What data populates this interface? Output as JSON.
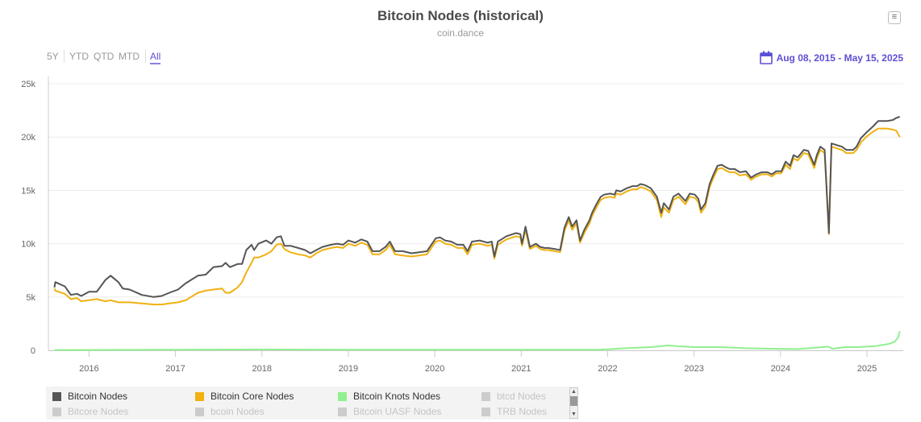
{
  "header": {
    "title": "Bitcoin Nodes (historical)",
    "subtitle": "coin.dance",
    "menu_icon": "hamburger-icon"
  },
  "range_selector": {
    "buttons": [
      "5Y",
      "YTD",
      "QTD",
      "MTD",
      "All"
    ],
    "selected": "All"
  },
  "date_range": {
    "label": "Aug 08, 2015 - May 15, 2025",
    "icon": "calendar-icon",
    "color": "#5d4fd6"
  },
  "legend": {
    "items": [
      {
        "label": "Bitcoin Nodes",
        "color": "#555555",
        "visible": true
      },
      {
        "label": "Bitcoin Core Nodes",
        "color": "#f0b111",
        "visible": true
      },
      {
        "label": "Bitcoin Knots Nodes",
        "color": "#90f090",
        "visible": true
      },
      {
        "label": "btcd Nodes",
        "color": "#cccccc",
        "visible": false
      },
      {
        "label": "Bitcore Nodes",
        "color": "#cccccc",
        "visible": false
      },
      {
        "label": "bcoin Nodes",
        "color": "#cccccc",
        "visible": false
      },
      {
        "label": "Bitcoin UASF Nodes",
        "color": "#cccccc",
        "visible": false
      },
      {
        "label": "TRB Nodes",
        "color": "#cccccc",
        "visible": false
      }
    ]
  },
  "chart_data": {
    "type": "line",
    "title": "Bitcoin Nodes (historical)",
    "subtitle": "coin.dance",
    "xlabel": "",
    "ylabel": "",
    "xlim": [
      2015.53,
      2025.42
    ],
    "ylim": [
      0,
      25000
    ],
    "yticks": [
      0,
      5000,
      10000,
      15000,
      20000,
      25000
    ],
    "ytick_labels": [
      "0",
      "5k",
      "10k",
      "15k",
      "20k",
      "25k"
    ],
    "xticks": [
      2016,
      2017,
      2018,
      2019,
      2020,
      2021,
      2022,
      2023,
      2024,
      2025
    ],
    "xtick_labels": [
      "2016",
      "2017",
      "2018",
      "2019",
      "2020",
      "2021",
      "2022",
      "2023",
      "2024",
      "2025"
    ],
    "grid": true,
    "legend_position": "bottom",
    "x": [
      2015.6,
      2015.61,
      2015.72,
      2015.79,
      2015.86,
      2015.91,
      2016.0,
      2016.09,
      2016.19,
      2016.25,
      2016.34,
      2016.39,
      2016.47,
      2016.61,
      2016.75,
      2016.84,
      2016.93,
      2017.03,
      2017.12,
      2017.26,
      2017.35,
      2017.44,
      2017.54,
      2017.58,
      2017.63,
      2017.72,
      2017.77,
      2017.82,
      2017.88,
      2017.91,
      2017.96,
      2018.05,
      2018.11,
      2018.17,
      2018.22,
      2018.26,
      2018.33,
      2018.42,
      2018.5,
      2018.56,
      2018.63,
      2018.7,
      2018.8,
      2018.87,
      2018.94,
      2019.0,
      2019.08,
      2019.15,
      2019.22,
      2019.28,
      2019.36,
      2019.43,
      2019.48,
      2019.54,
      2019.63,
      2019.73,
      2019.82,
      2019.91,
      2020.01,
      2020.06,
      2020.12,
      2020.19,
      2020.26,
      2020.33,
      2020.38,
      2020.43,
      2020.52,
      2020.61,
      2020.66,
      2020.69,
      2020.73,
      2020.83,
      2020.94,
      2020.99,
      2021.01,
      2021.05,
      2021.1,
      2021.17,
      2021.22,
      2021.27,
      2021.31,
      2021.39,
      2021.45,
      2021.5,
      2021.55,
      2021.59,
      2021.64,
      2021.68,
      2021.73,
      2021.79,
      2021.82,
      2021.87,
      2021.92,
      2021.96,
      2022.03,
      2022.08,
      2022.1,
      2022.15,
      2022.22,
      2022.29,
      2022.34,
      2022.38,
      2022.43,
      2022.5,
      2022.57,
      2022.62,
      2022.65,
      2022.71,
      2022.76,
      2022.82,
      2022.9,
      2022.95,
      2023.01,
      2023.05,
      2023.08,
      2023.13,
      2023.18,
      2023.22,
      2023.27,
      2023.32,
      2023.36,
      2023.41,
      2023.47,
      2023.53,
      2023.6,
      2023.66,
      2023.72,
      2023.78,
      2023.85,
      2023.9,
      2023.95,
      2024.01,
      2024.06,
      2024.11,
      2024.15,
      2024.2,
      2024.27,
      2024.32,
      2024.39,
      2024.42,
      2024.46,
      2024.51,
      2024.56,
      2024.59,
      2024.67,
      2024.71,
      2024.76,
      2024.84,
      2024.88,
      2024.93,
      2024.99,
      2025.07,
      2025.13,
      2025.23,
      2025.3,
      2025.34,
      2025.38
    ],
    "series": [
      {
        "name": "Bitcoin Nodes",
        "color": "#555555",
        "unit": "k",
        "values": [
          5.9,
          6.4,
          6.0,
          5.2,
          5.3,
          5.1,
          5.5,
          5.5,
          6.6,
          7.0,
          6.4,
          5.8,
          5.7,
          5.2,
          5.0,
          5.1,
          5.4,
          5.7,
          6.3,
          7.0,
          7.1,
          7.8,
          7.9,
          8.2,
          7.8,
          8.1,
          8.1,
          9.4,
          9.9,
          9.4,
          10.0,
          10.3,
          10.0,
          10.6,
          10.7,
          9.8,
          9.8,
          9.6,
          9.4,
          9.1,
          9.4,
          9.7,
          9.9,
          10.0,
          9.9,
          10.3,
          10.1,
          10.4,
          10.2,
          9.3,
          9.3,
          9.7,
          10.2,
          9.3,
          9.3,
          9.1,
          9.2,
          9.3,
          10.5,
          10.6,
          10.3,
          10.2,
          9.9,
          9.9,
          9.3,
          10.2,
          10.3,
          10.1,
          10.2,
          8.8,
          10.2,
          10.7,
          11.0,
          10.9,
          10.0,
          11.6,
          9.7,
          10.0,
          9.7,
          9.6,
          9.6,
          9.5,
          9.4,
          11.5,
          12.5,
          11.6,
          12.2,
          10.3,
          11.3,
          12.2,
          12.9,
          13.7,
          14.4,
          14.6,
          14.7,
          14.6,
          15.0,
          14.9,
          15.2,
          15.4,
          15.4,
          15.6,
          15.5,
          15.2,
          14.4,
          12.9,
          13.8,
          13.2,
          14.4,
          14.7,
          14.0,
          14.7,
          14.6,
          14.2,
          13.2,
          13.8,
          15.6,
          16.4,
          17.3,
          17.4,
          17.2,
          17.0,
          17.0,
          16.7,
          16.8,
          16.2,
          16.5,
          16.7,
          16.7,
          16.5,
          16.8,
          16.8,
          17.7,
          17.3,
          18.3,
          18.1,
          18.8,
          18.7,
          17.4,
          18.3,
          19.1,
          18.8,
          11.0,
          19.4,
          19.2,
          19.1,
          18.8,
          18.8,
          19.1,
          19.9,
          20.4,
          21.0,
          21.5,
          21.5,
          21.6,
          21.8,
          21.9
        ]
      },
      {
        "name": "Bitcoin Core Nodes",
        "color": "#f0b111",
        "unit": "k",
        "values": [
          5.8,
          5.6,
          5.3,
          4.8,
          4.9,
          4.6,
          4.7,
          4.8,
          4.6,
          4.7,
          4.5,
          4.5,
          4.5,
          4.4,
          4.3,
          4.3,
          4.4,
          4.5,
          4.7,
          5.4,
          5.6,
          5.7,
          5.8,
          5.4,
          5.4,
          5.9,
          6.4,
          7.3,
          8.2,
          8.7,
          8.7,
          9.0,
          9.3,
          9.9,
          10.0,
          9.5,
          9.2,
          9.0,
          8.9,
          8.7,
          9.1,
          9.4,
          9.6,
          9.7,
          9.6,
          10.0,
          9.8,
          10.1,
          9.9,
          9.0,
          9.0,
          9.4,
          9.9,
          9.0,
          8.9,
          8.8,
          8.9,
          9.0,
          10.2,
          10.3,
          10.0,
          9.9,
          9.6,
          9.6,
          9.0,
          9.9,
          10.0,
          9.8,
          9.9,
          8.6,
          9.9,
          10.4,
          10.7,
          10.6,
          9.8,
          11.3,
          9.5,
          9.8,
          9.5,
          9.4,
          9.4,
          9.3,
          9.2,
          11.2,
          12.2,
          11.3,
          11.9,
          10.1,
          11.0,
          11.9,
          12.6,
          13.4,
          14.1,
          14.3,
          14.4,
          14.3,
          14.7,
          14.6,
          14.9,
          15.1,
          15.1,
          15.3,
          15.2,
          14.9,
          14.1,
          12.5,
          13.4,
          12.9,
          14.1,
          14.4,
          13.7,
          14.4,
          14.3,
          13.9,
          12.9,
          13.5,
          15.3,
          16.1,
          17.0,
          17.1,
          16.9,
          16.7,
          16.7,
          16.4,
          16.5,
          16.0,
          16.3,
          16.5,
          16.5,
          16.3,
          16.6,
          16.6,
          17.4,
          17.0,
          18.0,
          17.8,
          18.5,
          18.4,
          17.1,
          18.0,
          18.8,
          18.5,
          10.9,
          19.1,
          18.9,
          18.8,
          18.5,
          18.5,
          18.8,
          19.5,
          20.0,
          20.5,
          20.8,
          20.8,
          20.7,
          20.6,
          20.0
        ]
      },
      {
        "name": "Bitcoin Knots Nodes",
        "color": "#90f090",
        "unit": "k",
        "x": [
          2015.6,
          2017,
          2018,
          2019,
          2020,
          2021,
          2021.9,
          2022.2,
          2022.5,
          2022.7,
          2022.8,
          2023.0,
          2023.3,
          2023.6,
          2023.9,
          2024.2,
          2024.4,
          2024.55,
          2024.6,
          2024.75,
          2024.9,
          2025.1,
          2025.25,
          2025.32,
          2025.36,
          2025.38
        ],
        "values": [
          0.03,
          0.05,
          0.08,
          0.05,
          0.05,
          0.05,
          0.06,
          0.2,
          0.3,
          0.45,
          0.4,
          0.3,
          0.3,
          0.2,
          0.15,
          0.12,
          0.25,
          0.35,
          0.15,
          0.3,
          0.3,
          0.4,
          0.6,
          0.8,
          1.2,
          1.8
        ]
      }
    ]
  }
}
